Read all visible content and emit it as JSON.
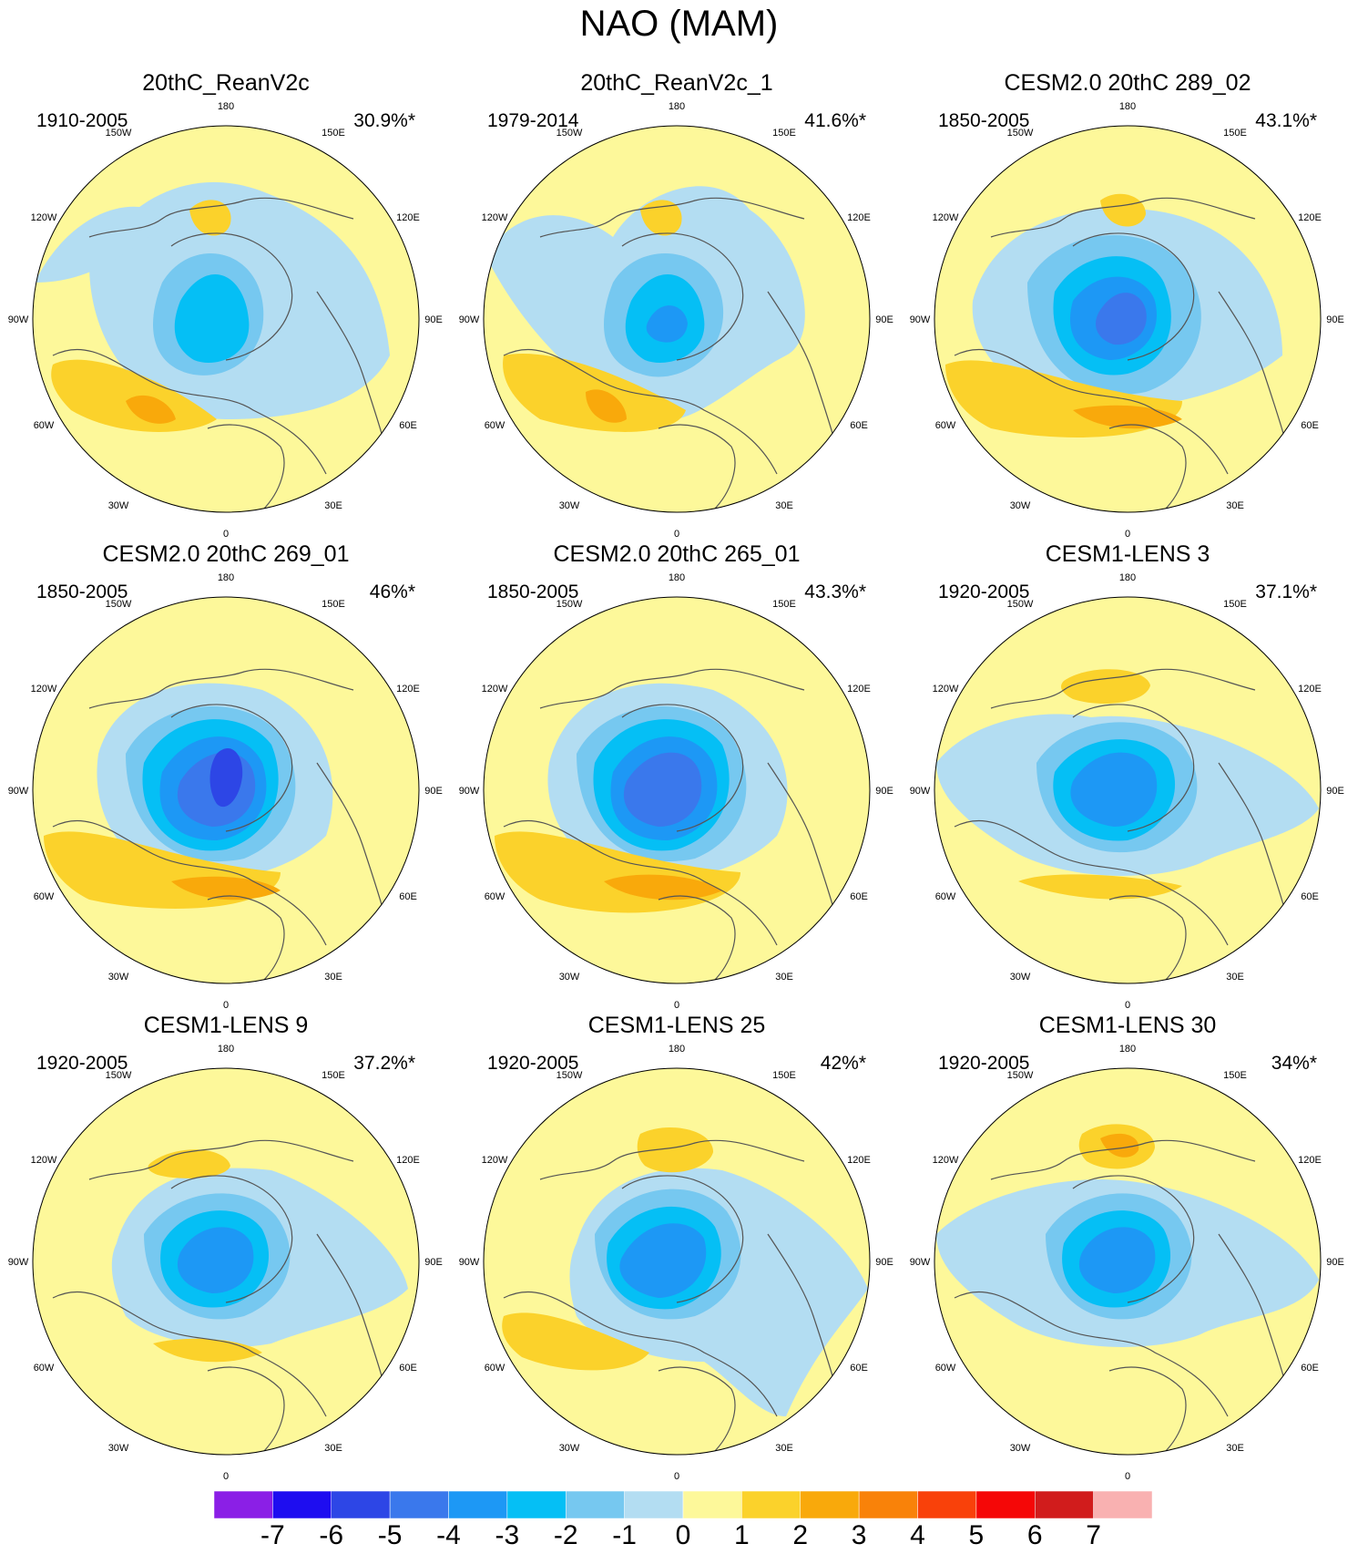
{
  "title": "NAO (MAM)",
  "colors": {
    "neg7": "#8b1fe6",
    "neg6": "#1e0df0",
    "neg5": "#2d46e6",
    "neg4": "#3a78ec",
    "neg3": "#1d98f5",
    "neg2": "#05bff5",
    "neg1": "#76c8f0",
    "neg0": "#b3ddf2",
    "pos0": "#fdf89a",
    "pos1": "#fbd22b",
    "pos2": "#f9a90b",
    "pos3": "#f98209",
    "pos4": "#f9410a",
    "pos5": "#f50707",
    "pos6": "#d11c1c",
    "pos7": "#f9b1b1",
    "coast": "#555555",
    "outline": "#000000"
  },
  "longitude_labels": [
    "180",
    "150E",
    "120E",
    "90E",
    "60E",
    "30E",
    "0",
    "30W",
    "60W",
    "90W",
    "120W",
    "150W"
  ],
  "panels": [
    {
      "title": "20thC_ReanV2c",
      "period": "1910-2005",
      "percent": "30.9%*"
    },
    {
      "title": "20thC_ReanV2c_1",
      "period": "1979-2014",
      "percent": "41.6%*"
    },
    {
      "title": "CESM2.0 20thC 289_02",
      "period": "1850-2005",
      "percent": "43.1%*"
    },
    {
      "title": "CESM2.0 20thC 269_01",
      "period": "1850-2005",
      "percent": "46%*"
    },
    {
      "title": "CESM2.0 20thC 265_01",
      "period": "1850-2005",
      "percent": "43.3%*"
    },
    {
      "title": "CESM1-LENS 3",
      "period": "1920-2005",
      "percent": "37.1%*"
    },
    {
      "title": "CESM1-LENS 9",
      "period": "1920-2005",
      "percent": "37.2%*"
    },
    {
      "title": "CESM1-LENS 25",
      "period": "1920-2005",
      "percent": "42%*"
    },
    {
      "title": "CESM1-LENS 30",
      "period": "1920-2005",
      "percent": "34%*"
    }
  ],
  "colorbar": {
    "labels": [
      "-7",
      "-6",
      "-5",
      "-4",
      "-3",
      "-2",
      "-1",
      "0",
      "1",
      "2",
      "3",
      "4",
      "5",
      "6",
      "7"
    ],
    "swatches": [
      "neg7",
      "neg6",
      "neg5",
      "neg4",
      "neg3",
      "neg2",
      "neg1",
      "neg0",
      "pos0",
      "pos1",
      "pos2",
      "pos3",
      "pos4",
      "pos5",
      "pos6",
      "pos7"
    ]
  }
}
